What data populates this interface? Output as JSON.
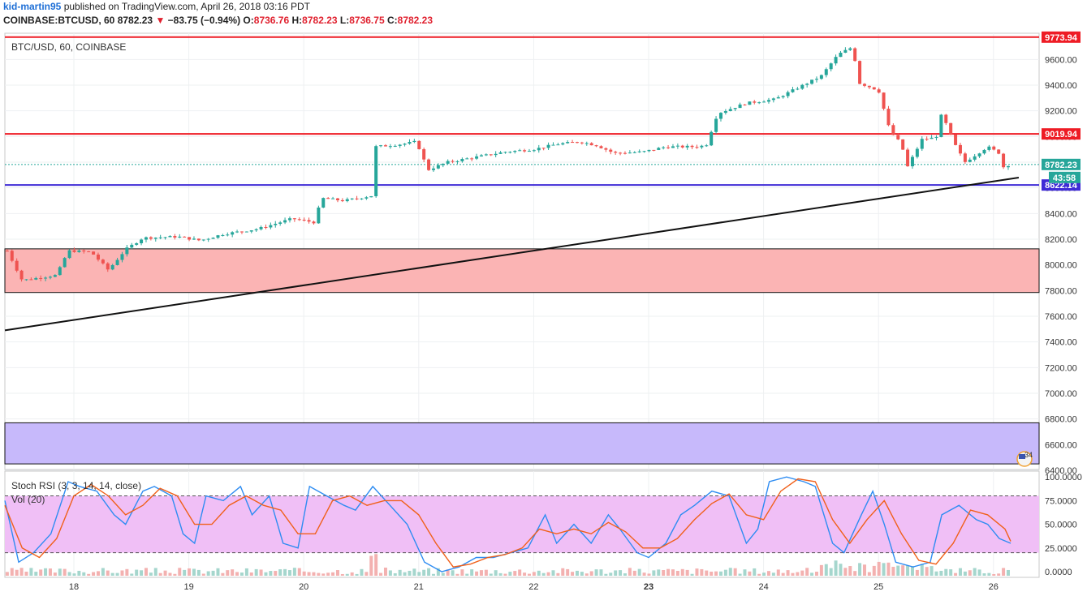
{
  "header": {
    "author": "kid-martin95",
    "published_text": " published on TradingView.com, April 26, 2018 03:16 PDT",
    "symbol": "COINBASE:BTCUSD, 60",
    "last": "8782.23",
    "change_arrow": "▼",
    "change": "−83.75 (−0.94%)",
    "o_label": "O:",
    "o_value": "8736.76",
    "h_label": "H:",
    "h_value": "8782.23",
    "l_label": "L:",
    "l_value": "8736.75",
    "c_label": "C:",
    "c_value": "8782.23"
  },
  "colors": {
    "up": "#26a69a",
    "down": "#ef5350",
    "resistance": "#ee1c25",
    "support": "#3f2bd6",
    "demand_zone": "#fbb4b4",
    "lower_zone": "#c7b9fb",
    "stoch_k": "#2e8cf2",
    "stoch_d": "#f0601a",
    "stoch_band": "#f0bff6"
  },
  "chart_data": [
    {
      "type": "candlestick",
      "pane_title": "BTC/USD, 60, COINBASE",
      "ylim": [
        6400,
        9800
      ],
      "y_ticks": [
        6400,
        6600,
        6800,
        7000,
        7200,
        7400,
        7600,
        7800,
        8000,
        8200,
        8400,
        8600,
        8800,
        9000,
        9200,
        9400,
        9600
      ],
      "x_ticks": [
        "18",
        "19",
        "20",
        "21",
        "22",
        "23",
        "24",
        "25",
        "26"
      ],
      "price_labels": {
        "resistance_high": "9773.94",
        "resistance_mid": "9019.94",
        "last_price": "8782.23",
        "countdown": "43:58",
        "support": "8622.14"
      },
      "horizontal_lines": [
        {
          "name": "resistance_high",
          "price": 9773.94
        },
        {
          "name": "resistance_mid",
          "price": 9019.94
        },
        {
          "name": "support",
          "price": 8622.14
        },
        {
          "name": "last_price",
          "price": 8782.23
        }
      ],
      "zones": [
        {
          "name": "demand_zone",
          "low": 7785,
          "high": 8125
        },
        {
          "name": "lower_zone",
          "low": 6450,
          "high": 6770
        }
      ],
      "trendline": {
        "from": {
          "day": 17.4,
          "price": 7490
        },
        "to": {
          "day": 26.22,
          "price": 8680
        }
      },
      "price_path": [
        [
          17.42,
          8110
        ],
        [
          17.55,
          7880
        ],
        [
          17.85,
          7920
        ],
        [
          17.95,
          8110
        ],
        [
          18.15,
          8100
        ],
        [
          18.3,
          7960
        ],
        [
          18.45,
          8120
        ],
        [
          18.6,
          8210
        ],
        [
          18.9,
          8220
        ],
        [
          19.1,
          8190
        ],
        [
          19.3,
          8240
        ],
        [
          19.6,
          8280
        ],
        [
          19.9,
          8360
        ],
        [
          20.1,
          8330
        ],
        [
          20.15,
          8520
        ],
        [
          20.35,
          8500
        ],
        [
          20.6,
          8540
        ],
        [
          20.62,
          8920
        ],
        [
          20.85,
          8940
        ],
        [
          20.98,
          8960
        ],
        [
          21.08,
          8740
        ],
        [
          21.25,
          8800
        ],
        [
          21.5,
          8840
        ],
        [
          21.75,
          8880
        ],
        [
          22.0,
          8900
        ],
        [
          22.2,
          8940
        ],
        [
          22.4,
          8960
        ],
        [
          22.55,
          8930
        ],
        [
          22.7,
          8870
        ],
        [
          22.95,
          8880
        ],
        [
          23.15,
          8920
        ],
        [
          23.4,
          8920
        ],
        [
          23.5,
          8930
        ],
        [
          23.6,
          9180
        ],
        [
          23.85,
          9260
        ],
        [
          24.1,
          9290
        ],
        [
          24.3,
          9380
        ],
        [
          24.5,
          9470
        ],
        [
          24.65,
          9640
        ],
        [
          24.78,
          9700
        ],
        [
          24.82,
          9420
        ],
        [
          25.0,
          9360
        ],
        [
          25.1,
          9040
        ],
        [
          25.2,
          8940
        ],
        [
          25.25,
          8760
        ],
        [
          25.38,
          8980
        ],
        [
          25.5,
          8990
        ],
        [
          25.55,
          9180
        ],
        [
          25.65,
          8960
        ],
        [
          25.75,
          8800
        ],
        [
          25.85,
          8860
        ],
        [
          25.95,
          8920
        ],
        [
          26.05,
          8870
        ],
        [
          26.08,
          8760
        ],
        [
          26.14,
          8782
        ]
      ]
    },
    {
      "type": "line",
      "pane_title": "Stoch RSI (3, 3, 14, 14, close)",
      "ylim": [
        0,
        100
      ],
      "y_ticks": [
        "100.0000",
        "75.0000",
        "50.0000",
        "25.0000",
        "0.0000"
      ],
      "bands": [
        80,
        20
      ],
      "series": [
        {
          "name": "K",
          "x": [
            17.4,
            17.52,
            17.65,
            17.8,
            17.95,
            18.05,
            18.2,
            18.35,
            18.45,
            18.6,
            18.7,
            18.85,
            18.95,
            19.05,
            19.15,
            19.3,
            19.45,
            19.55,
            19.7,
            19.82,
            19.95,
            20.05,
            20.2,
            20.35,
            20.45,
            20.6,
            20.75,
            20.9,
            21.05,
            21.2,
            21.35,
            21.5,
            21.65,
            21.8,
            21.95,
            22.1,
            22.2,
            22.35,
            22.5,
            22.65,
            22.75,
            22.9,
            23.0,
            23.15,
            23.28,
            23.4,
            23.55,
            23.7,
            23.85,
            23.95,
            24.05,
            24.2,
            24.35,
            24.45,
            24.6,
            24.7,
            24.85,
            24.95,
            25.05,
            25.15,
            25.3,
            25.45,
            25.55,
            25.7,
            25.85,
            25.95,
            26.05,
            26.15
          ],
          "values": [
            75,
            10,
            20,
            40,
            95,
            90,
            85,
            60,
            50,
            85,
            90,
            80,
            40,
            30,
            80,
            75,
            90,
            60,
            80,
            30,
            25,
            90,
            80,
            70,
            65,
            90,
            70,
            50,
            10,
            0,
            5,
            15,
            15,
            20,
            25,
            60,
            30,
            50,
            30,
            60,
            45,
            20,
            15,
            30,
            60,
            70,
            85,
            80,
            30,
            45,
            95,
            100,
            95,
            90,
            30,
            20,
            60,
            85,
            50,
            10,
            5,
            10,
            60,
            70,
            55,
            50,
            35,
            30
          ]
        },
        {
          "name": "D",
          "x": [
            17.4,
            17.55,
            17.7,
            17.85,
            18.0,
            18.15,
            18.3,
            18.45,
            18.6,
            18.75,
            18.9,
            19.05,
            19.2,
            19.35,
            19.5,
            19.65,
            19.8,
            19.95,
            20.1,
            20.25,
            20.4,
            20.55,
            20.7,
            20.85,
            21.0,
            21.15,
            21.3,
            21.45,
            21.6,
            21.75,
            21.9,
            22.05,
            22.2,
            22.35,
            22.5,
            22.65,
            22.8,
            22.95,
            23.1,
            23.25,
            23.4,
            23.55,
            23.7,
            23.85,
            24.0,
            24.15,
            24.3,
            24.45,
            24.6,
            24.75,
            24.9,
            25.05,
            25.2,
            25.35,
            25.5,
            25.65,
            25.8,
            25.95,
            26.1,
            26.15
          ],
          "values": [
            70,
            25,
            15,
            35,
            80,
            92,
            80,
            60,
            70,
            88,
            80,
            50,
            50,
            70,
            80,
            70,
            65,
            40,
            40,
            75,
            80,
            70,
            75,
            75,
            60,
            30,
            5,
            8,
            15,
            18,
            25,
            45,
            40,
            45,
            40,
            52,
            42,
            25,
            25,
            35,
            55,
            72,
            82,
            60,
            55,
            85,
            98,
            95,
            55,
            30,
            55,
            75,
            40,
            12,
            8,
            30,
            65,
            60,
            45,
            32
          ]
        }
      ]
    },
    {
      "type": "bar",
      "pane_title": "Vol (20)",
      "note": "volume histogram"
    }
  ]
}
